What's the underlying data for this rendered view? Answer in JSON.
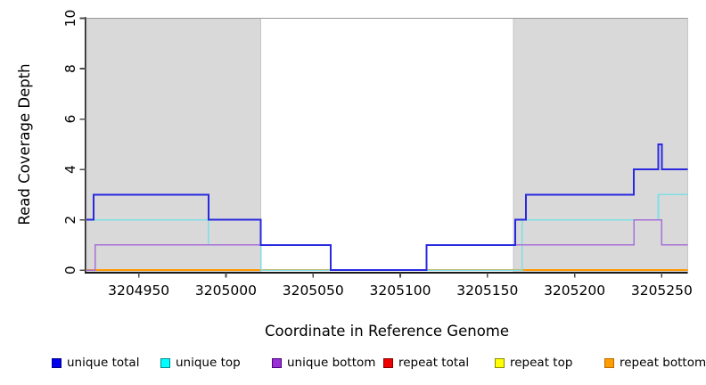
{
  "axes": {
    "x_label": "Coordinate in Reference Genome",
    "y_label": "Read Coverage Depth",
    "x_ticks": [
      3204950,
      3205000,
      3205050,
      3205100,
      3205150,
      3205200,
      3205250
    ],
    "y_ticks": [
      0,
      2,
      4,
      6,
      8,
      10
    ]
  },
  "legend": {
    "items": [
      {
        "label": "unique total",
        "fill": "#0000ee",
        "border": "#00008b"
      },
      {
        "label": "unique top",
        "fill": "#00ffff",
        "border": "#008b8b"
      },
      {
        "label": "unique bottom",
        "fill": "#9a2fd4",
        "border": "#4b0082"
      },
      {
        "label": "repeat total",
        "fill": "#ee0000",
        "border": "#8b0000"
      },
      {
        "label": "repeat top",
        "fill": "#ffff00",
        "border": "#8b8b00"
      },
      {
        "label": "repeat bottom",
        "fill": "#ff9d00",
        "border": "#b86b00"
      }
    ]
  },
  "chart_data": {
    "type": "line",
    "subtype": "step-coverage",
    "title": "",
    "xlabel": "Coordinate in Reference Genome",
    "ylabel": "Read Coverage Depth",
    "xlim": [
      3204920,
      3205265
    ],
    "ylim": [
      0,
      10
    ],
    "x_ticks": [
      3204950,
      3205000,
      3205050,
      3205100,
      3205150,
      3205200,
      3205250
    ],
    "y_ticks": [
      0,
      2,
      4,
      6,
      8,
      10
    ],
    "grid": false,
    "legend_position": "bottom",
    "top_boundary_line": {
      "y": 10,
      "color": "#9a9a9a"
    },
    "shaded_regions": [
      {
        "from": 3204920,
        "to": 3205020,
        "fill": "#d9d9d9",
        "border": "#c6c6c6"
      },
      {
        "from": 3205165,
        "to": 3205265,
        "fill": "#d9d9d9",
        "border": "#c6c6c6"
      }
    ],
    "series": [
      {
        "name": "repeat total",
        "color": "#cc0000",
        "width": 1.5,
        "steps": [
          [
            3204920,
            0
          ]
        ]
      },
      {
        "name": "repeat top",
        "color": "#ffff00",
        "width": 1.5,
        "steps": [
          [
            3204920,
            0
          ]
        ]
      },
      {
        "name": "repeat bottom",
        "color": "#ff9800",
        "width": 2,
        "steps": [
          [
            3204920,
            0
          ]
        ]
      },
      {
        "name": "unique top",
        "color": "#7edfe6",
        "width": 1.6,
        "steps": [
          [
            3204920,
            2
          ],
          [
            3204990,
            1
          ],
          [
            3205020,
            0
          ],
          [
            3205170,
            2
          ],
          [
            3205248,
            3
          ]
        ]
      },
      {
        "name": "unique bottom",
        "color": "#a96fd8",
        "width": 1.6,
        "steps": [
          [
            3204920,
            0
          ],
          [
            3204925,
            1
          ],
          [
            3205060,
            0
          ],
          [
            3205115,
            1
          ],
          [
            3205234,
            2
          ],
          [
            3205250,
            1
          ]
        ]
      },
      {
        "name": "unique total",
        "color": "#2929e0",
        "width": 2,
        "steps": [
          [
            3204920,
            2
          ],
          [
            3204924,
            3
          ],
          [
            3204990,
            2
          ],
          [
            3205020,
            1
          ],
          [
            3205060,
            0
          ],
          [
            3205115,
            1
          ],
          [
            3205166,
            2
          ],
          [
            3205172,
            3
          ],
          [
            3205234,
            4
          ],
          [
            3205248,
            5
          ],
          [
            3205250,
            4
          ]
        ]
      }
    ]
  }
}
